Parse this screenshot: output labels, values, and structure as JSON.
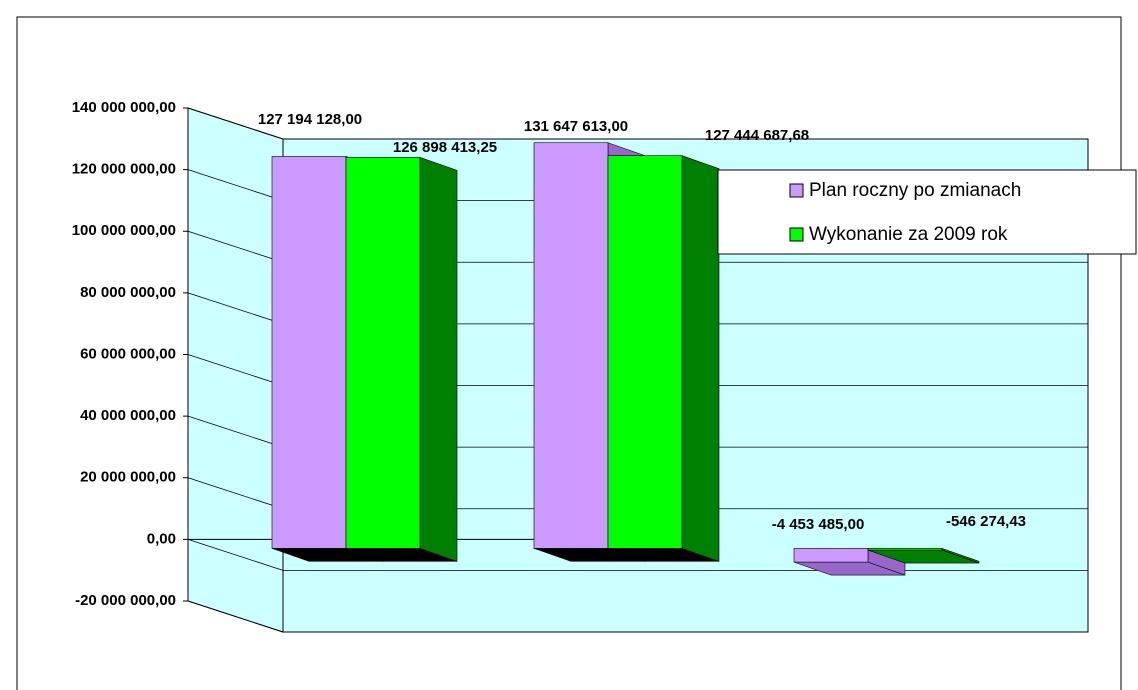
{
  "chart_data": {
    "type": "bar3d",
    "categories": [
      null,
      null,
      null
    ],
    "series": [
      {
        "name": "Plan roczny po zmianach",
        "color": "#cc99ff",
        "side_color": "#9966cc",
        "values": [
          127194128,
          131647613,
          -4453485
        ],
        "value_labels": [
          "127 194 128,00",
          "131 647 613,00",
          "-4 453 485,00"
        ]
      },
      {
        "name": "Wykonanie za 2009 rok",
        "color": "#00ff00",
        "side_color": "#008000",
        "values": [
          126898413.25,
          127444687.68,
          -546274.43
        ],
        "value_labels": [
          "126 898 413,25",
          "127 444 687,68",
          "-546 274,43"
        ]
      }
    ],
    "ylim": [
      -20000000,
      140000000
    ],
    "yticks": [
      {
        "value": -20000000,
        "label": "-20 000 000,00"
      },
      {
        "value": 0,
        "label": "0,00"
      },
      {
        "value": 20000000,
        "label": "20 000 000,00"
      },
      {
        "value": 40000000,
        "label": "40 000 000,00"
      },
      {
        "value": 60000000,
        "label": "60 000 000,00"
      },
      {
        "value": 80000000,
        "label": "80 000 000,00"
      },
      {
        "value": 100000000,
        "label": "100 000 000,00"
      },
      {
        "value": 120000000,
        "label": "120 000 000,00"
      },
      {
        "value": 140000000,
        "label": "140 000 000,00"
      }
    ],
    "grid": true,
    "legend": "right"
  }
}
